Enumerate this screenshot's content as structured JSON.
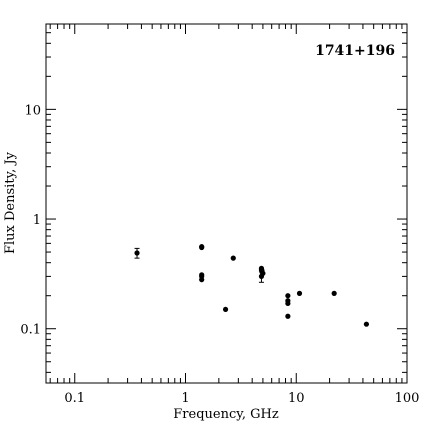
{
  "chart_data": {
    "type": "scatter",
    "title": "1741+196",
    "xlabel": "Frequency, GHz",
    "ylabel": "Flux Density, Jy",
    "x_scale": "log",
    "y_scale": "log",
    "xlim": [
      0.055,
      100
    ],
    "ylim": [
      0.032,
      60
    ],
    "x_ticks": [
      {
        "value": 0.1,
        "label": "0.1"
      },
      {
        "value": 1,
        "label": "1"
      },
      {
        "value": 10,
        "label": "10"
      },
      {
        "value": 100,
        "label": "100"
      }
    ],
    "y_ticks": [
      {
        "value": 0.1,
        "label": "0.1"
      },
      {
        "value": 1,
        "label": "1"
      },
      {
        "value": 10,
        "label": "10"
      }
    ],
    "grid": false,
    "series": [
      {
        "points": [
          {
            "x": 0.365,
            "y": 0.49,
            "err": 0.05
          },
          {
            "x": 1.4,
            "y": 0.56
          },
          {
            "x": 1.4,
            "y": 0.55
          },
          {
            "x": 1.4,
            "y": 0.31
          },
          {
            "x": 1.4,
            "y": 0.3
          },
          {
            "x": 1.4,
            "y": 0.28
          },
          {
            "x": 2.3,
            "y": 0.15
          },
          {
            "x": 2.7,
            "y": 0.44
          },
          {
            "x": 4.85,
            "y": 0.355
          },
          {
            "x": 4.85,
            "y": 0.345
          },
          {
            "x": 4.9,
            "y": 0.34
          },
          {
            "x": 4.9,
            "y": 0.33
          },
          {
            "x": 5.0,
            "y": 0.32
          },
          {
            "x": 4.85,
            "y": 0.3,
            "err": 0.035
          },
          {
            "x": 8.4,
            "y": 0.2
          },
          {
            "x": 8.4,
            "y": 0.18
          },
          {
            "x": 8.4,
            "y": 0.17
          },
          {
            "x": 8.4,
            "y": 0.13
          },
          {
            "x": 10.7,
            "y": 0.21
          },
          {
            "x": 22,
            "y": 0.21
          },
          {
            "x": 43,
            "y": 0.11
          }
        ]
      }
    ]
  }
}
